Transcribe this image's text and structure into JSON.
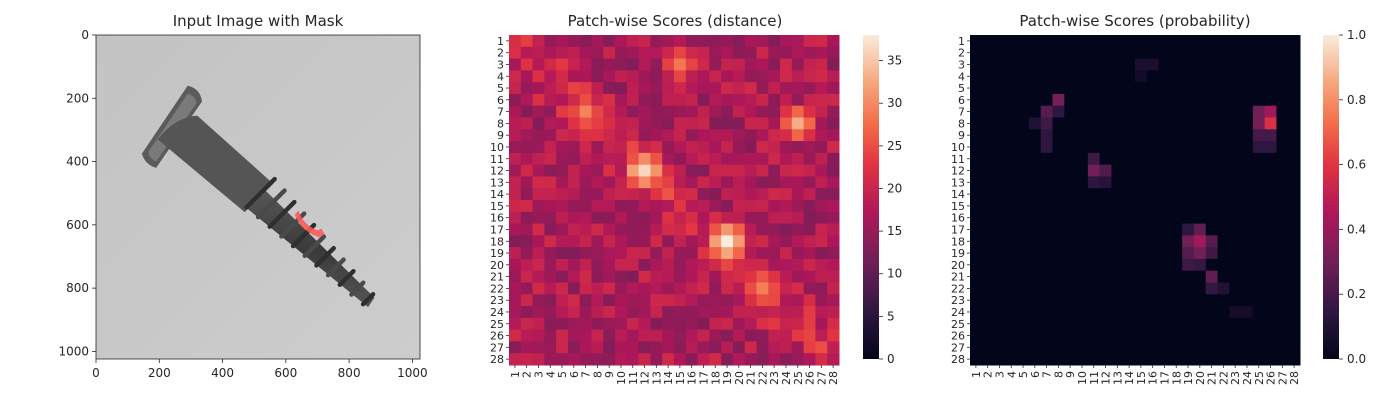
{
  "panels": {
    "image": {
      "title": "Input Image with Mask",
      "xticks": [
        "0",
        "200",
        "400",
        "600",
        "800",
        "1000"
      ],
      "yticks": [
        "0",
        "200",
        "400",
        "600",
        "800",
        "1000"
      ],
      "xlim": [
        0,
        1024
      ],
      "ylim": [
        1024,
        0
      ]
    },
    "distance": {
      "title": "Patch-wise Scores (distance)",
      "colorbar_ticks": [
        "0",
        "5",
        "10",
        "15",
        "20",
        "25",
        "30",
        "35"
      ],
      "colorbar_range": [
        0,
        38
      ]
    },
    "probability": {
      "title": "Patch-wise Scores (probability)",
      "colorbar_ticks": [
        "0.0",
        "0.2",
        "0.4",
        "0.6",
        "0.8",
        "1.0"
      ],
      "colorbar_range": [
        0,
        1
      ]
    }
  },
  "chart_data": [
    {
      "type": "image",
      "title": "Input Image with Mask",
      "xlim": [
        0,
        1024
      ],
      "ylim": [
        1024,
        0
      ],
      "screw_axis_points": [
        [
          310,
          240
        ],
        [
          880,
          850
        ]
      ],
      "mask_region_center": [
        690,
        600
      ]
    },
    {
      "type": "heatmap",
      "title": "Patch-wise Scores (distance)",
      "grid": [
        28,
        28
      ],
      "tick_labels": [
        "1",
        "2",
        "3",
        "4",
        "5",
        "6",
        "7",
        "8",
        "9",
        "10",
        "11",
        "12",
        "13",
        "14",
        "15",
        "16",
        "17",
        "18",
        "19",
        "20",
        "21",
        "22",
        "23",
        "24",
        "25",
        "26",
        "27",
        "28"
      ],
      "value_range": [
        0,
        38
      ],
      "base_value": 17,
      "hot_spots": [
        {
          "row": 12,
          "col": 12,
          "peak": 37
        },
        {
          "row": 18,
          "col": 19,
          "peak": 38
        },
        {
          "row": 8,
          "col": 25,
          "peak": 32
        },
        {
          "row": 7,
          "col": 7,
          "peak": 30
        },
        {
          "row": 22,
          "col": 22,
          "peak": 30
        },
        {
          "row": 3,
          "col": 15,
          "peak": 28
        }
      ]
    },
    {
      "type": "heatmap",
      "title": "Patch-wise Scores (probability)",
      "grid": [
        28,
        28
      ],
      "tick_labels": [
        "1",
        "2",
        "3",
        "4",
        "5",
        "6",
        "7",
        "8",
        "9",
        "10",
        "11",
        "12",
        "13",
        "14",
        "15",
        "16",
        "17",
        "18",
        "19",
        "20",
        "21",
        "22",
        "23",
        "24",
        "25",
        "26",
        "27",
        "28"
      ],
      "value_range": [
        0,
        1
      ],
      "cells": [
        {
          "row": 8,
          "col": 26,
          "value": 0.58
        },
        {
          "row": 7,
          "col": 26,
          "value": 0.42
        },
        {
          "row": 7,
          "col": 25,
          "value": 0.3
        },
        {
          "row": 8,
          "col": 25,
          "value": 0.32
        },
        {
          "row": 9,
          "col": 25,
          "value": 0.2
        },
        {
          "row": 9,
          "col": 26,
          "value": 0.2
        },
        {
          "row": 10,
          "col": 25,
          "value": 0.14
        },
        {
          "row": 10,
          "col": 26,
          "value": 0.14
        },
        {
          "row": 18,
          "col": 20,
          "value": 0.42
        },
        {
          "row": 18,
          "col": 19,
          "value": 0.3
        },
        {
          "row": 17,
          "col": 20,
          "value": 0.26
        },
        {
          "row": 19,
          "col": 19,
          "value": 0.24
        },
        {
          "row": 19,
          "col": 20,
          "value": 0.3
        },
        {
          "row": 18,
          "col": 21,
          "value": 0.24
        },
        {
          "row": 19,
          "col": 21,
          "value": 0.18
        },
        {
          "row": 20,
          "col": 19,
          "value": 0.18
        },
        {
          "row": 20,
          "col": 20,
          "value": 0.16
        },
        {
          "row": 17,
          "col": 19,
          "value": 0.14
        },
        {
          "row": 21,
          "col": 21,
          "value": 0.26
        },
        {
          "row": 22,
          "col": 21,
          "value": 0.16
        },
        {
          "row": 22,
          "col": 22,
          "value": 0.1
        },
        {
          "row": 12,
          "col": 11,
          "value": 0.3
        },
        {
          "row": 12,
          "col": 12,
          "value": 0.22
        },
        {
          "row": 11,
          "col": 11,
          "value": 0.18
        },
        {
          "row": 13,
          "col": 11,
          "value": 0.14
        },
        {
          "row": 13,
          "col": 12,
          "value": 0.12
        },
        {
          "row": 6,
          "col": 8,
          "value": 0.32
        },
        {
          "row": 7,
          "col": 7,
          "value": 0.24
        },
        {
          "row": 8,
          "col": 7,
          "value": 0.18
        },
        {
          "row": 9,
          "col": 7,
          "value": 0.14
        },
        {
          "row": 10,
          "col": 7,
          "value": 0.14
        },
        {
          "row": 7,
          "col": 8,
          "value": 0.14
        },
        {
          "row": 8,
          "col": 6,
          "value": 0.1
        },
        {
          "row": 3,
          "col": 15,
          "value": 0.08
        },
        {
          "row": 3,
          "col": 16,
          "value": 0.08
        },
        {
          "row": 4,
          "col": 15,
          "value": 0.05
        },
        {
          "row": 24,
          "col": 23,
          "value": 0.06
        },
        {
          "row": 24,
          "col": 24,
          "value": 0.06
        }
      ]
    }
  ]
}
